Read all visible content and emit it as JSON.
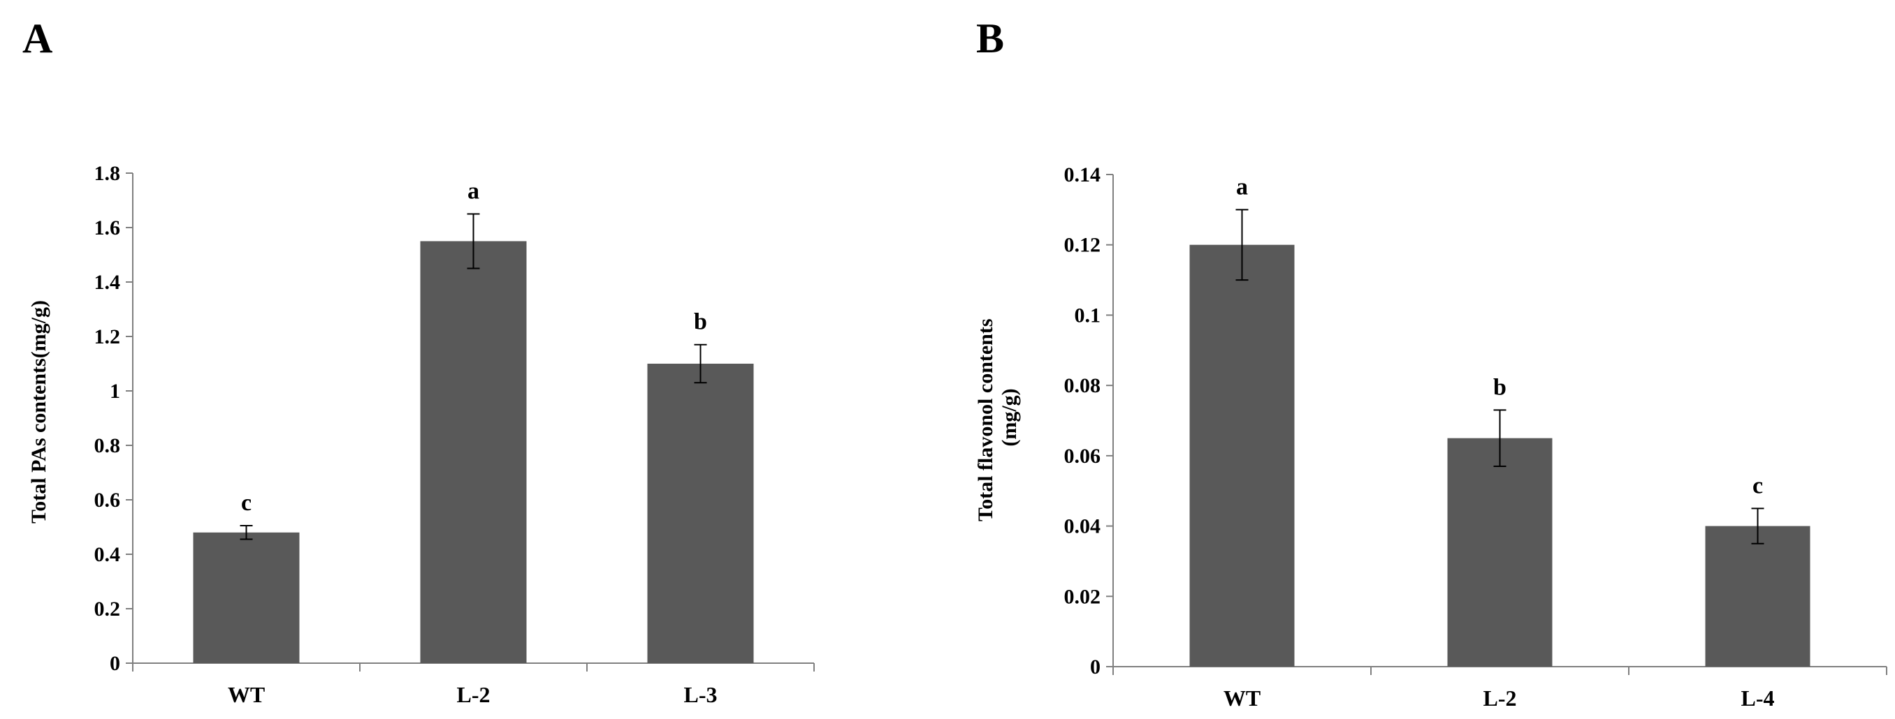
{
  "chart_data": [
    {
      "type": "bar",
      "panel": "A",
      "categories": [
        "WT",
        "L-2",
        "L-3"
      ],
      "values": [
        0.48,
        1.55,
        1.1
      ],
      "errors": [
        0.025,
        0.1,
        0.07
      ],
      "significance": [
        "c",
        "a",
        "b"
      ],
      "ylabel": "Total  PAs contents(mg/g)",
      "ylim": [
        0,
        1.8
      ],
      "yticks": [
        "0",
        "0.2",
        "0.4",
        "0.6",
        "0.8",
        "1",
        "1.2",
        "1.4",
        "1.6",
        "1.8"
      ],
      "bar_color": "#595959",
      "grid": false
    },
    {
      "type": "bar",
      "panel": "B",
      "categories": [
        "WT",
        "L-2",
        "L-4"
      ],
      "values": [
        0.12,
        0.065,
        0.04
      ],
      "errors": [
        0.01,
        0.008,
        0.005
      ],
      "significance": [
        "a",
        "b",
        "c"
      ],
      "ylabel": [
        "Total flavonol contents",
        "(mg/g)"
      ],
      "ylim": [
        0,
        0.14
      ],
      "yticks": [
        "0",
        "0.02",
        "0.04",
        "0.06",
        "0.08",
        "0.1",
        "0.12",
        "0.14"
      ],
      "bar_color": "#595959",
      "grid": false
    }
  ]
}
